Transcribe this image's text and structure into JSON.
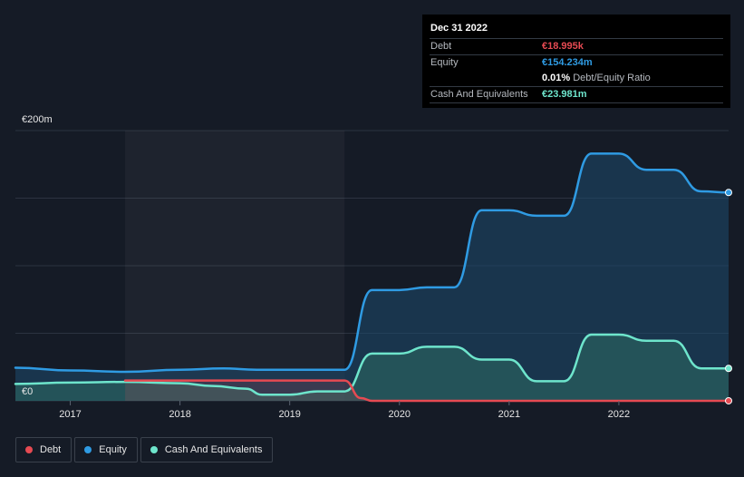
{
  "tooltip": {
    "date": "Dec 31 2022",
    "rows": {
      "debt": {
        "label": "Debt",
        "value": "€18.995k"
      },
      "equity": {
        "label": "Equity",
        "value": "€154.234m"
      },
      "ratio": {
        "value": "0.01%",
        "label": "Debt/Equity Ratio"
      },
      "cash": {
        "label": "Cash And Equivalents",
        "value": "€23.981m"
      }
    }
  },
  "legend": [
    {
      "key": "debt",
      "label": "Debt",
      "color": "#e64a52"
    },
    {
      "key": "equity",
      "label": "Equity",
      "color": "#2f9be3"
    },
    {
      "key": "cash",
      "label": "Cash And Equivalents",
      "color": "#6ee5cc"
    }
  ],
  "chart_data": {
    "type": "area",
    "y_top_label": "€200m",
    "y_bottom_label": "€0",
    "ylim": [
      0,
      200
    ],
    "xlim": [
      2016.5,
      2023.0
    ],
    "x_ticks": [
      {
        "value": 2017,
        "label": "2017"
      },
      {
        "value": 2018,
        "label": "2018"
      },
      {
        "value": 2019,
        "label": "2019"
      },
      {
        "value": 2020,
        "label": "2020"
      },
      {
        "value": 2021,
        "label": "2021"
      },
      {
        "value": 2022,
        "label": "2022"
      }
    ],
    "highlight_start": 2017.5,
    "grid": true,
    "legend_position": "bottom-left",
    "series": [
      {
        "name": "Equity",
        "key": "equity",
        "color": "#2f9be3",
        "x": [
          2016.5,
          2017.0,
          2017.5,
          2018.0,
          2018.4,
          2018.7,
          2019.0,
          2019.5,
          2019.75,
          2020.0,
          2020.25,
          2020.5,
          2020.75,
          2021.0,
          2021.25,
          2021.5,
          2021.75,
          2022.0,
          2022.25,
          2022.5,
          2022.75,
          2023.0
        ],
        "y": [
          24.5,
          22.5,
          21.5,
          23.0,
          24.0,
          23.0,
          23.0,
          23.0,
          82.0,
          82.0,
          84.0,
          84.0,
          141.0,
          141.0,
          137.0,
          137.0,
          183.0,
          183.0,
          171.0,
          171.0,
          155.0,
          154.2
        ]
      },
      {
        "name": "Cash And Equivalents",
        "key": "cash",
        "color": "#6ee5cc",
        "x": [
          2016.5,
          2017.0,
          2017.5,
          2018.0,
          2018.3,
          2018.6,
          2018.75,
          2019.0,
          2019.25,
          2019.5,
          2019.75,
          2020.0,
          2020.25,
          2020.5,
          2020.75,
          2021.0,
          2021.25,
          2021.5,
          2021.75,
          2022.0,
          2022.25,
          2022.5,
          2022.75,
          2023.0
        ],
        "y": [
          12.5,
          13.5,
          14.0,
          13.0,
          11.0,
          9.0,
          4.5,
          4.5,
          7.0,
          7.0,
          35.0,
          35.0,
          40.0,
          40.0,
          30.5,
          30.5,
          14.5,
          14.5,
          49.0,
          49.0,
          44.5,
          44.5,
          24.0,
          24.0
        ]
      },
      {
        "name": "Debt",
        "key": "debt",
        "color": "#e64a52",
        "x": [
          2017.5,
          2018.0,
          2019.0,
          2019.5,
          2019.65,
          2019.75,
          2023.0
        ],
        "y": [
          15.0,
          15.0,
          15.0,
          15.0,
          2.0,
          0.02,
          0.02
        ]
      }
    ]
  }
}
